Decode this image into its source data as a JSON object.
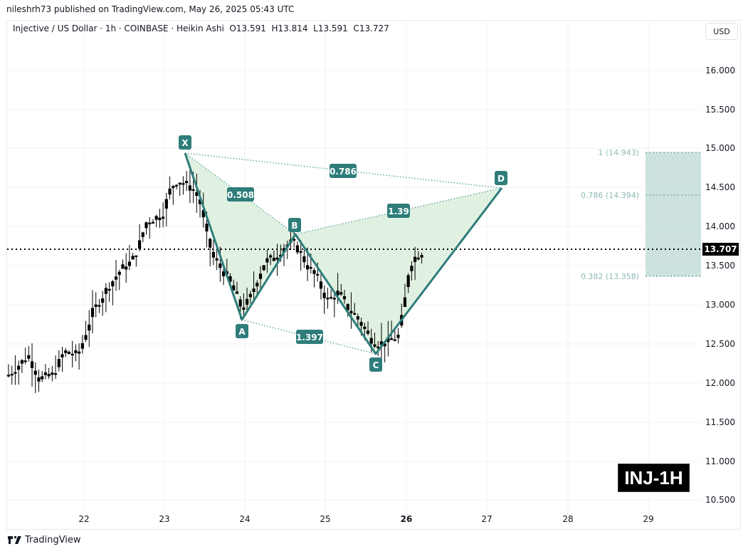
{
  "header": {
    "published": "nileshrh73 published on TradingView.com, May 26, 2025 05:43 UTC",
    "legend": "Injective / US Dollar · 1h · COINBASE · Heikin Ashi  O13.591  H13.814  L13.591  C13.727"
  },
  "currency_button": "USD",
  "current_price": "13.707",
  "watermark": "INJ-1H",
  "brand": "TradingView",
  "colors": {
    "pattern_line": "#2e7d7b",
    "pattern_fill": "#dcefdc",
    "label_bg": "#2e7d7b",
    "target_zone": "#c8dfdc",
    "fib_text": "#8fbbb6",
    "candle": "#000000",
    "grid": "#f0f1f3"
  },
  "chart_data": {
    "type": "candlestick",
    "title": "Injective / US Dollar · 1h · COINBASE · Heikin Ashi",
    "ohlc_last": {
      "open": 13.591,
      "high": 13.814,
      "low": 13.591,
      "close": 13.727
    },
    "current_price": 13.707,
    "y_ticks": [
      "16.000",
      "15.500",
      "15.000",
      "14.500",
      "14.000",
      "13.500",
      "13.000",
      "12.500",
      "12.000",
      "11.500",
      "11.000",
      "10.500"
    ],
    "x_ticks": [
      "22",
      "23",
      "24",
      "25",
      "26",
      "27",
      "28",
      "29"
    ],
    "ylim": [
      10.4,
      16.3
    ],
    "harmonic_pattern": {
      "points": [
        {
          "label": "X",
          "price": 14.943,
          "date": "23"
        },
        {
          "label": "A",
          "price": 12.8,
          "date": "24"
        },
        {
          "label": "B",
          "price": 13.9,
          "date": "24.6"
        },
        {
          "label": "C",
          "price": 12.37,
          "date": "25.6"
        },
        {
          "label": "D",
          "price": 14.47,
          "date": "27.2"
        }
      ],
      "ratios": [
        {
          "label": "0.508",
          "between": "XA-AB"
        },
        {
          "label": "1.397",
          "between": "AB-BC"
        },
        {
          "label": "1.39",
          "between": "BC-CD"
        },
        {
          "label": "0.786",
          "between": "XA-AD"
        }
      ]
    },
    "fib_levels": [
      {
        "label": "1 (14.943)",
        "ratio": 1,
        "price": 14.943
      },
      {
        "label": "0.786 (14.394)",
        "ratio": 0.786,
        "price": 14.394
      },
      {
        "label": "0.382 (13.358)",
        "ratio": 0.382,
        "price": 13.358
      }
    ],
    "candles_hl_approx": [
      [
        12.15,
        12.05,
        11.95,
        12.2
      ],
      [
        12.2,
        12.1,
        11.95,
        12.25
      ],
      [
        12.3,
        12.2,
        12.0,
        12.4
      ],
      [
        12.4,
        12.3,
        12.2,
        12.55
      ],
      [
        12.45,
        12.35,
        12.25,
        12.65
      ],
      [
        12.45,
        12.35,
        12.2,
        12.6
      ],
      [
        12.35,
        12.2,
        12.1,
        12.45
      ],
      [
        12.2,
        12.05,
        11.95,
        12.3
      ],
      [
        12.1,
        12.05,
        11.98,
        12.25
      ],
      [
        12.1,
        12.05,
        11.98,
        12.2
      ],
      [
        12.15,
        12.1,
        12.0,
        12.3
      ],
      [
        12.25,
        12.15,
        12.05,
        12.4
      ],
      [
        12.55,
        12.35,
        12.25,
        12.65
      ],
      [
        12.75,
        12.55,
        12.5,
        12.95
      ],
      [
        12.6,
        12.45,
        12.1,
        12.85
      ],
      [
        12.35,
        12.1,
        11.9,
        12.55
      ],
      [
        12.35,
        12.35,
        12.15,
        12.55
      ],
      [
        12.35,
        12.35,
        12.2,
        12.55
      ],
      [
        12.35,
        12.35,
        12.25,
        12.45
      ],
      [
        12.4,
        12.35,
        12.3,
        12.5
      ],
      [
        12.65,
        12.45,
        12.4,
        12.75
      ],
      [
        12.9,
        12.65,
        12.6,
        13.1
      ],
      [
        13.1,
        12.85,
        12.75,
        13.3
      ],
      [
        13.15,
        13.0,
        12.95,
        13.3
      ],
      [
        13.3,
        13.1,
        13.05,
        13.45
      ],
      [
        13.4,
        13.25,
        13.2,
        13.5
      ],
      [
        13.45,
        13.35,
        13.25,
        13.55
      ],
      [
        13.5,
        13.45,
        13.35,
        13.65
      ],
      [
        13.65,
        13.55,
        13.5,
        13.75
      ],
      [
        13.85,
        13.65,
        13.6,
        14.05
      ],
      [
        14.15,
        13.9,
        13.85,
        14.3
      ]
    ]
  }
}
